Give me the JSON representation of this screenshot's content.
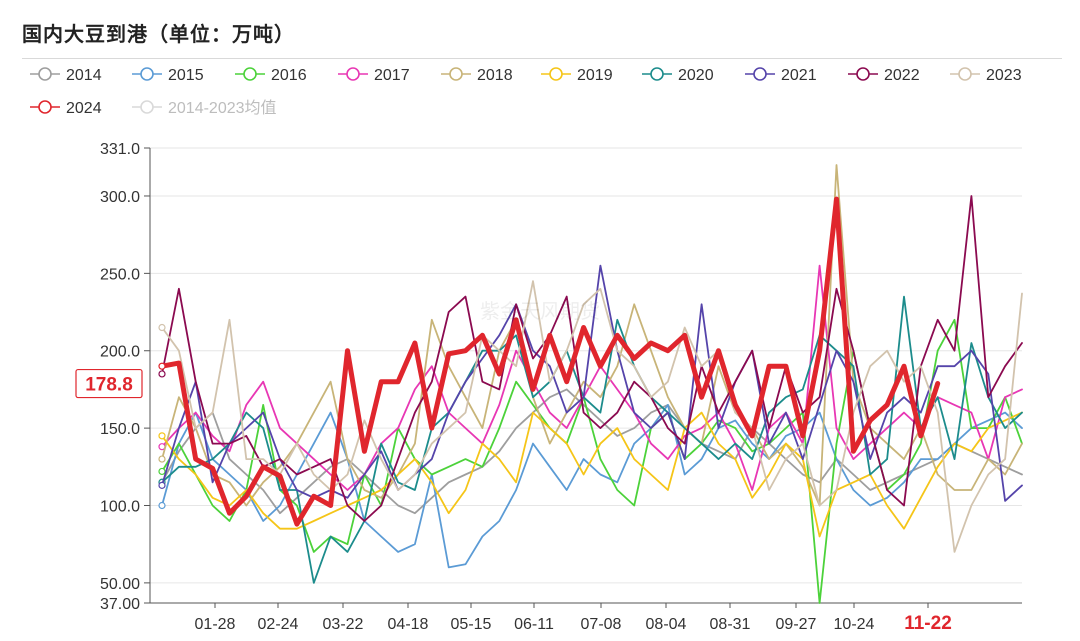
{
  "title": "国内大豆到港（单位：万吨）",
  "watermark": "紫金天风期货",
  "chart_data": {
    "type": "line",
    "title": "国内大豆到港（单位：万吨）",
    "xlabel": "",
    "ylabel": "",
    "ylim": [
      37,
      331
    ],
    "y_ticks": [
      "331.0",
      "300.0",
      "250.0",
      "200.0",
      "150.0",
      "100.0",
      "50.00",
      "37.00"
    ],
    "x_tick_labels": [
      "01-28",
      "02-24",
      "03-22",
      "04-18",
      "05-15",
      "06-11",
      "07-08",
      "08-04",
      "08-31",
      "09-27",
      "10-24",
      "11-22"
    ],
    "highlight_x_label": "11-22",
    "highlight_y_label": "178.8",
    "grid": "horizontal",
    "legend_position": "top",
    "weeks": 52,
    "series": [
      {
        "name": "2014",
        "color": "#9e9e9e",
        "values": [
          115,
          135,
          150,
          160,
          130,
          120,
          110,
          95,
          105,
          115,
          125,
          130,
          120,
          110,
          100,
          95,
          105,
          115,
          120,
          125,
          135,
          150,
          160,
          170,
          175,
          165,
          155,
          145,
          150,
          160,
          165,
          150,
          140,
          135,
          130,
          150,
          140,
          130,
          120,
          115,
          130,
          120,
          110,
          115,
          120,
          125,
          130,
          140,
          135,
          130,
          125,
          120
        ]
      },
      {
        "name": "2015",
        "color": "#5b9bd5",
        "values": [
          100,
          140,
          160,
          130,
          120,
          110,
          90,
          100,
          120,
          140,
          160,
          130,
          90,
          80,
          70,
          75,
          120,
          60,
          62,
          80,
          90,
          110,
          140,
          125,
          110,
          130,
          120,
          115,
          140,
          150,
          165,
          120,
          130,
          150,
          155,
          140,
          130,
          145,
          150,
          160,
          130,
          110,
          100,
          105,
          115,
          130,
          130,
          140,
          150,
          155,
          160,
          150
        ]
      },
      {
        "name": "2016",
        "color": "#4cd23a",
        "values": [
          122,
          140,
          120,
          100,
          90,
          110,
          165,
          110,
          100,
          70,
          80,
          75,
          120,
          100,
          150,
          130,
          120,
          125,
          130,
          125,
          150,
          180,
          165,
          150,
          140,
          170,
          130,
          110,
          100,
          150,
          160,
          130,
          140,
          155,
          150,
          135,
          140,
          150,
          160,
          37,
          140,
          200,
          150,
          110,
          120,
          140,
          200,
          220,
          150,
          150,
          170,
          140
        ]
      },
      {
        "name": "2017",
        "color": "#e837b4",
        "values": [
          138,
          150,
          160,
          145,
          135,
          165,
          180,
          150,
          140,
          130,
          120,
          110,
          120,
          140,
          150,
          175,
          190,
          160,
          150,
          140,
          165,
          200,
          180,
          160,
          150,
          170,
          190,
          175,
          160,
          140,
          130,
          145,
          150,
          160,
          140,
          110,
          150,
          160,
          140,
          255,
          150,
          130,
          140,
          150,
          160,
          150,
          170,
          165,
          160,
          130,
          170,
          175
        ]
      },
      {
        "name": "2018",
        "color": "#c8b478",
        "values": [
          130,
          170,
          150,
          120,
          115,
          100,
          115,
          125,
          140,
          160,
          180,
          130,
          110,
          105,
          120,
          140,
          220,
          190,
          170,
          150,
          200,
          220,
          170,
          140,
          160,
          180,
          170,
          190,
          230,
          200,
          170,
          150,
          140,
          190,
          160,
          150,
          130,
          140,
          125,
          100,
          320,
          180,
          150,
          140,
          130,
          150,
          120,
          110,
          110,
          130,
          120,
          140
        ]
      },
      {
        "name": "2019",
        "color": "#f5c518",
        "values": [
          145,
          130,
          120,
          105,
          100,
          110,
          95,
          85,
          85,
          90,
          95,
          100,
          105,
          110,
          120,
          130,
          115,
          95,
          110,
          140,
          130,
          115,
          160,
          150,
          140,
          120,
          140,
          150,
          130,
          120,
          110,
          150,
          160,
          140,
          130,
          105,
          120,
          140,
          130,
          80,
          110,
          115,
          120,
          100,
          85,
          105,
          125,
          140,
          135,
          150,
          155,
          160
        ]
      },
      {
        "name": "2020",
        "color": "#1c8c8c",
        "values": [
          115,
          125,
          125,
          130,
          140,
          160,
          150,
          110,
          110,
          50,
          80,
          70,
          90,
          140,
          115,
          110,
          150,
          160,
          180,
          200,
          200,
          210,
          170,
          180,
          200,
          170,
          160,
          220,
          190,
          170,
          160,
          150,
          140,
          130,
          140,
          130,
          160,
          170,
          175,
          210,
          200,
          190,
          120,
          130,
          235,
          150,
          170,
          130,
          205,
          170,
          150,
          160
        ]
      },
      {
        "name": "2021",
        "color": "#5544aa",
        "values": [
          113,
          150,
          180,
          115,
          140,
          150,
          160,
          130,
          110,
          105,
          110,
          105,
          120,
          135,
          110,
          120,
          130,
          160,
          180,
          195,
          210,
          230,
          200,
          190,
          160,
          170,
          255,
          200,
          160,
          150,
          160,
          130,
          230,
          150,
          180,
          200,
          140,
          160,
          130,
          165,
          200,
          180,
          130,
          160,
          170,
          160,
          190,
          190,
          200,
          185,
          103,
          113
        ]
      },
      {
        "name": "2022",
        "color": "#8b0a50",
        "values": [
          185,
          240,
          180,
          140,
          140,
          145,
          125,
          130,
          120,
          125,
          130,
          100,
          90,
          100,
          130,
          160,
          180,
          225,
          235,
          180,
          175,
          230,
          195,
          210,
          235,
          160,
          150,
          160,
          180,
          170,
          150,
          140,
          190,
          160,
          180,
          200,
          150,
          190,
          160,
          170,
          240,
          200,
          150,
          110,
          100,
          190,
          220,
          200,
          300,
          170,
          190,
          205
        ]
      },
      {
        "name": "2023",
        "color": "#d2c3ad",
        "values": [
          215,
          200,
          150,
          160,
          220,
          130,
          130,
          120,
          140,
          120,
          110,
          120,
          155,
          130,
          110,
          120,
          140,
          150,
          160,
          210,
          200,
          190,
          245,
          180,
          200,
          230,
          240,
          200,
          190,
          170,
          180,
          215,
          190,
          200,
          160,
          150,
          110,
          130,
          140,
          100,
          110,
          160,
          190,
          200,
          180,
          190,
          160,
          70,
          100,
          120,
          130,
          237
        ]
      },
      {
        "name": "2024",
        "color": "#e0262d",
        "values": [
          190,
          192,
          130,
          124,
          95,
          106,
          125,
          119,
          88,
          106,
          100,
          200,
          135,
          180,
          180,
          205,
          150,
          198,
          200,
          210,
          185,
          220,
          175,
          210,
          180,
          215,
          190,
          210,
          195,
          205,
          200,
          210,
          170,
          200,
          165,
          145,
          190,
          190,
          145,
          200,
          298,
          135,
          155,
          165,
          190,
          145,
          178.8
        ]
      },
      {
        "name": "2014-2023均值",
        "color": "#d9d9d9",
        "values": []
      }
    ],
    "highlight_series": "2024"
  }
}
